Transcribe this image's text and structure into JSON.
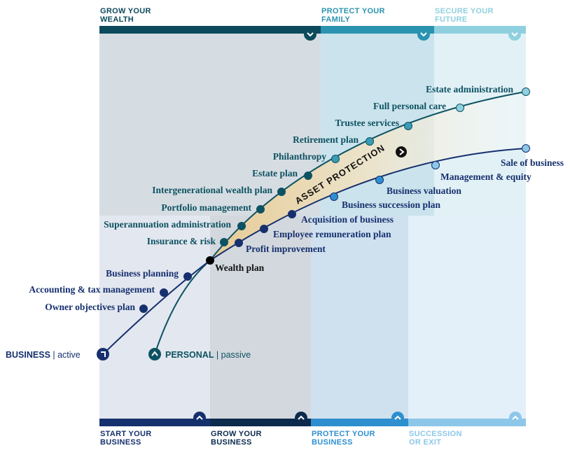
{
  "top_stages": [
    {
      "line1": "GROW YOUR",
      "line2": "WEALTH",
      "color": "#0d4a5c",
      "text_color": "#0d4a5c"
    },
    {
      "line1": "PROTECT YOUR",
      "line2": "FAMILY",
      "color": "#2a93b0",
      "text_color": "#2a93b0"
    },
    {
      "line1": "SECURE YOUR",
      "line2": "FUTURE",
      "color": "#8fd0df",
      "text_color": "#8fd0df"
    }
  ],
  "bottom_stages": [
    {
      "line1": "START YOUR",
      "line2": "BUSINESS",
      "color": "#16306e",
      "text_color": "#16306e"
    },
    {
      "line1": "GROW YOUR",
      "line2": "BUSINESS",
      "color": "#0c2a4c",
      "text_color": "#0c2a4c"
    },
    {
      "line1": "PROTECT YOUR",
      "line2": "BUSINESS",
      "color": "#2e8fcf",
      "text_color": "#2e8fcf"
    },
    {
      "line1": "SUCCESSION",
      "line2": "OR EXIT",
      "color": "#8cc7ea",
      "text_color": "#8cc7ea"
    }
  ],
  "personal_milestones": [
    "Insurance & risk",
    "Superannuation administration",
    "Portfolio management",
    "Intergenerational wealth plan",
    "Estate plan",
    "Philanthropy",
    "Retirement plan",
    "Trustee services",
    "Full personal care",
    "Estate administration"
  ],
  "business_milestones": [
    "Owner objectives plan",
    "Accounting & tax management",
    "Business planning",
    "Profit improvement",
    "Employee remuneration plan",
    "Acquisition of business",
    "Business succession plan",
    "Business valuation",
    "Management & equity",
    "Sale of business"
  ],
  "wealth_plan": "Wealth plan",
  "asset_protection": "ASSET PROTECTION",
  "business_start": {
    "bold": "BUSINESS",
    "sep": " | ",
    "rest": "active"
  },
  "personal_start": {
    "bold": "PERSONAL",
    "sep": " | ",
    "rest": "passive"
  },
  "colors": {
    "personal_line": "#0d5262",
    "business_line": "#16306e",
    "personal_text": "#0d5262",
    "business_text": "#16306e"
  }
}
